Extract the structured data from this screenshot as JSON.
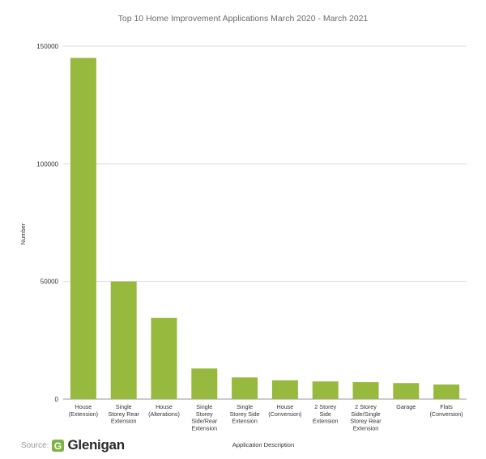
{
  "chart_data": {
    "type": "bar",
    "title": "Top 10 Home Improvement Applications March 2020 - March 2021",
    "xlabel": "Application Description",
    "ylabel": "Number",
    "ylim": [
      0,
      150000
    ],
    "yticks": [
      0,
      50000,
      100000,
      150000
    ],
    "grid": true,
    "bar_color": "#97b93d",
    "categories": [
      [
        "House",
        "(Extension)"
      ],
      [
        "Single",
        "Storey Rear",
        "Extension"
      ],
      [
        "House",
        "(Alterations)"
      ],
      [
        "Single",
        "Storey",
        "Side/Rear",
        "Extension"
      ],
      [
        "Single",
        "Storey Side",
        "Extension"
      ],
      [
        "House",
        "(Conversion)"
      ],
      [
        "2 Storey",
        "Side",
        "Extension"
      ],
      [
        "2 Storey",
        "Side/Single",
        "Storey Rear",
        "Extension"
      ],
      [
        "Garage"
      ],
      [
        "Flats",
        "(Conversion)"
      ]
    ],
    "values": [
      145000,
      50000,
      34500,
      13000,
      9200,
      8000,
      7500,
      7200,
      6800,
      6200
    ]
  },
  "source": {
    "label": "Source:",
    "brand": "Glenigan",
    "brand_color": "#7cb342"
  }
}
